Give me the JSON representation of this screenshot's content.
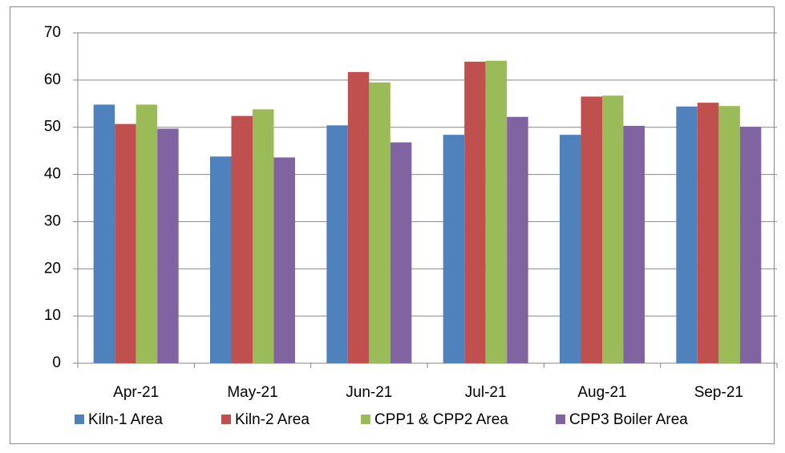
{
  "chart_data": {
    "type": "bar",
    "categories": [
      "Apr-21",
      "May-21",
      "Jun-21",
      "Jul-21",
      "Aug-21",
      "Sep-21"
    ],
    "series": [
      {
        "name": "Kiln-1 Area",
        "color": "#4f81bd",
        "values": [
          54.8,
          43.8,
          50.4,
          48.4,
          48.4,
          54.4
        ]
      },
      {
        "name": "Kiln-2 Area",
        "color": "#c0504d",
        "values": [
          50.7,
          52.4,
          61.7,
          63.9,
          56.5,
          55.2
        ]
      },
      {
        "name": "CPP1 & CPP2 Area",
        "color": "#9bbb59",
        "values": [
          54.8,
          53.8,
          59.5,
          64.1,
          56.7,
          54.5
        ]
      },
      {
        "name": "CPP3 Boiler Area",
        "color": "#8064a2",
        "values": [
          49.7,
          43.6,
          46.8,
          52.2,
          50.3,
          50.1
        ]
      }
    ],
    "ylim": [
      0,
      70
    ],
    "yticks": [
      0,
      10,
      20,
      30,
      40,
      50,
      60,
      70
    ],
    "grid": true,
    "legend": "bottom"
  }
}
